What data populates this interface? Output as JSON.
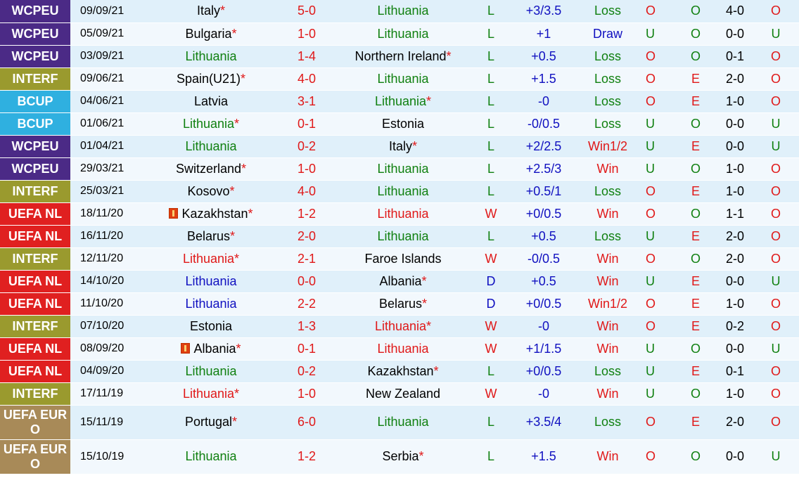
{
  "colors": {
    "WCPEU": "#4b2a86",
    "INTERF": "#9a9a2e",
    "BCUP": "#2fb0e0",
    "UEFA NL": "#e02020",
    "UEFA EURO": "#a88a58",
    "win_text": "#e01818",
    "loss_text": "#108010",
    "draw_text": "#1010c0"
  },
  "rows": [
    {
      "comp": "WCPEU",
      "date": "09/09/21",
      "home": "Italy",
      "home_star": "*",
      "home_color": "black",
      "score": "5-0",
      "away": "Lithuania",
      "away_star": "",
      "away_color": "green",
      "result": "L",
      "hcap": "+3/3.5",
      "outcome": "Loss",
      "ou": "O",
      "ht_ou": "O",
      "ht": "4-0",
      "hdp": "O"
    },
    {
      "comp": "WCPEU",
      "date": "05/09/21",
      "home": "Bulgaria",
      "home_star": "*",
      "home_color": "black",
      "score": "1-0",
      "away": "Lithuania",
      "away_star": "",
      "away_color": "green",
      "result": "L",
      "hcap": "+1",
      "outcome": "Draw",
      "ou": "U",
      "ht_ou": "O",
      "ht": "0-0",
      "hdp": "U"
    },
    {
      "comp": "WCPEU",
      "date": "03/09/21",
      "home": "Lithuania",
      "home_star": "",
      "home_color": "green",
      "score": "1-4",
      "away": "Northern Ireland",
      "away_star": "*",
      "away_color": "black",
      "result": "L",
      "hcap": "+0.5",
      "outcome": "Loss",
      "ou": "O",
      "ht_ou": "O",
      "ht": "0-1",
      "hdp": "O"
    },
    {
      "comp": "INTERF",
      "date": "09/06/21",
      "home": "Spain(U21)",
      "home_star": "*",
      "home_color": "black",
      "score": "4-0",
      "away": "Lithuania",
      "away_star": "",
      "away_color": "green",
      "result": "L",
      "hcap": "+1.5",
      "outcome": "Loss",
      "ou": "O",
      "ht_ou": "E",
      "ht": "2-0",
      "hdp": "O"
    },
    {
      "comp": "BCUP",
      "date": "04/06/21",
      "home": "Latvia",
      "home_star": "",
      "home_color": "black",
      "score": "3-1",
      "away": "Lithuania",
      "away_star": "*",
      "away_color": "green",
      "result": "L",
      "hcap": "-0",
      "outcome": "Loss",
      "ou": "O",
      "ht_ou": "E",
      "ht": "1-0",
      "hdp": "O"
    },
    {
      "comp": "BCUP",
      "date": "01/06/21",
      "home": "Lithuania",
      "home_star": "*",
      "home_color": "green",
      "score": "0-1",
      "away": "Estonia",
      "away_star": "",
      "away_color": "black",
      "result": "L",
      "hcap": "-0/0.5",
      "outcome": "Loss",
      "ou": "U",
      "ht_ou": "O",
      "ht": "0-0",
      "hdp": "U"
    },
    {
      "comp": "WCPEU",
      "date": "01/04/21",
      "home": "Lithuania",
      "home_star": "",
      "home_color": "green",
      "score": "0-2",
      "away": "Italy",
      "away_star": "*",
      "away_color": "black",
      "result": "L",
      "hcap": "+2/2.5",
      "outcome": "Win1/2",
      "ou": "U",
      "ht_ou": "E",
      "ht": "0-0",
      "hdp": "U"
    },
    {
      "comp": "WCPEU",
      "date": "29/03/21",
      "home": "Switzerland",
      "home_star": "*",
      "home_color": "black",
      "score": "1-0",
      "away": "Lithuania",
      "away_star": "",
      "away_color": "green",
      "result": "L",
      "hcap": "+2.5/3",
      "outcome": "Win",
      "ou": "U",
      "ht_ou": "O",
      "ht": "1-0",
      "hdp": "O"
    },
    {
      "comp": "INTERF",
      "date": "25/03/21",
      "home": "Kosovo",
      "home_star": "*",
      "home_color": "black",
      "score": "4-0",
      "away": "Lithuania",
      "away_star": "",
      "away_color": "green",
      "result": "L",
      "hcap": "+0.5/1",
      "outcome": "Loss",
      "ou": "O",
      "ht_ou": "E",
      "ht": "1-0",
      "hdp": "O"
    },
    {
      "comp": "UEFA NL",
      "date": "18/11/20",
      "home": "Kazakhstan",
      "home_star": "*",
      "home_color": "black",
      "home_flag": true,
      "score": "1-2",
      "away": "Lithuania",
      "away_star": "",
      "away_color": "red",
      "result": "W",
      "hcap": "+0/0.5",
      "outcome": "Win",
      "ou": "O",
      "ht_ou": "O",
      "ht": "1-1",
      "hdp": "O"
    },
    {
      "comp": "UEFA NL",
      "date": "16/11/20",
      "home": "Belarus",
      "home_star": "*",
      "home_color": "black",
      "score": "2-0",
      "away": "Lithuania",
      "away_star": "",
      "away_color": "green",
      "result": "L",
      "hcap": "+0.5",
      "outcome": "Loss",
      "ou": "U",
      "ht_ou": "E",
      "ht": "2-0",
      "hdp": "O"
    },
    {
      "comp": "INTERF",
      "date": "12/11/20",
      "home": "Lithuania",
      "home_star": "*",
      "home_color": "red",
      "score": "2-1",
      "away": "Faroe Islands",
      "away_star": "",
      "away_color": "black",
      "result": "W",
      "hcap": "-0/0.5",
      "outcome": "Win",
      "ou": "O",
      "ht_ou": "O",
      "ht": "2-0",
      "hdp": "O"
    },
    {
      "comp": "UEFA NL",
      "date": "14/10/20",
      "home": "Lithuania",
      "home_star": "",
      "home_color": "blue",
      "score": "0-0",
      "away": "Albania",
      "away_star": "*",
      "away_color": "black",
      "result": "D",
      "hcap": "+0.5",
      "outcome": "Win",
      "ou": "U",
      "ht_ou": "E",
      "ht": "0-0",
      "hdp": "U"
    },
    {
      "comp": "UEFA NL",
      "date": "11/10/20",
      "home": "Lithuania",
      "home_star": "",
      "home_color": "blue",
      "score": "2-2",
      "away": "Belarus",
      "away_star": "*",
      "away_color": "black",
      "result": "D",
      "hcap": "+0/0.5",
      "outcome": "Win1/2",
      "ou": "O",
      "ht_ou": "E",
      "ht": "1-0",
      "hdp": "O"
    },
    {
      "comp": "INTERF",
      "date": "07/10/20",
      "home": "Estonia",
      "home_star": "",
      "home_color": "black",
      "score": "1-3",
      "away": "Lithuania",
      "away_star": "*",
      "away_color": "red",
      "result": "W",
      "hcap": "-0",
      "outcome": "Win",
      "ou": "O",
      "ht_ou": "E",
      "ht": "0-2",
      "hdp": "O"
    },
    {
      "comp": "UEFA NL",
      "date": "08/09/20",
      "home": "Albania",
      "home_star": "*",
      "home_color": "black",
      "home_flag": true,
      "score": "0-1",
      "away": "Lithuania",
      "away_star": "",
      "away_color": "red",
      "result": "W",
      "hcap": "+1/1.5",
      "outcome": "Win",
      "ou": "U",
      "ht_ou": "O",
      "ht": "0-0",
      "hdp": "U"
    },
    {
      "comp": "UEFA NL",
      "date": "04/09/20",
      "home": "Lithuania",
      "home_star": "",
      "home_color": "green",
      "score": "0-2",
      "away": "Kazakhstan",
      "away_star": "*",
      "away_color": "black",
      "result": "L",
      "hcap": "+0/0.5",
      "outcome": "Loss",
      "ou": "U",
      "ht_ou": "E",
      "ht": "0-1",
      "hdp": "O"
    },
    {
      "comp": "INTERF",
      "date": "17/11/19",
      "home": "Lithuania",
      "home_star": "*",
      "home_color": "red",
      "score": "1-0",
      "away": "New Zealand",
      "away_star": "",
      "away_color": "black",
      "result": "W",
      "hcap": "-0",
      "outcome": "Win",
      "ou": "U",
      "ht_ou": "O",
      "ht": "1-0",
      "hdp": "O"
    },
    {
      "comp": "UEFA EURO",
      "date": "15/11/19",
      "home": "Portugal",
      "home_star": "*",
      "home_color": "black",
      "score": "6-0",
      "away": "Lithuania",
      "away_star": "",
      "away_color": "green",
      "result": "L",
      "hcap": "+3.5/4",
      "outcome": "Loss",
      "ou": "O",
      "ht_ou": "E",
      "ht": "2-0",
      "hdp": "O",
      "tall": true
    },
    {
      "comp": "UEFA EURO",
      "date": "15/10/19",
      "home": "Lithuania",
      "home_star": "",
      "home_color": "green",
      "score": "1-2",
      "away": "Serbia",
      "away_star": "*",
      "away_color": "black",
      "result": "L",
      "hcap": "+1.5",
      "outcome": "Win",
      "ou": "O",
      "ht_ou": "O",
      "ht": "0-0",
      "hdp": "U",
      "tall": true
    }
  ]
}
